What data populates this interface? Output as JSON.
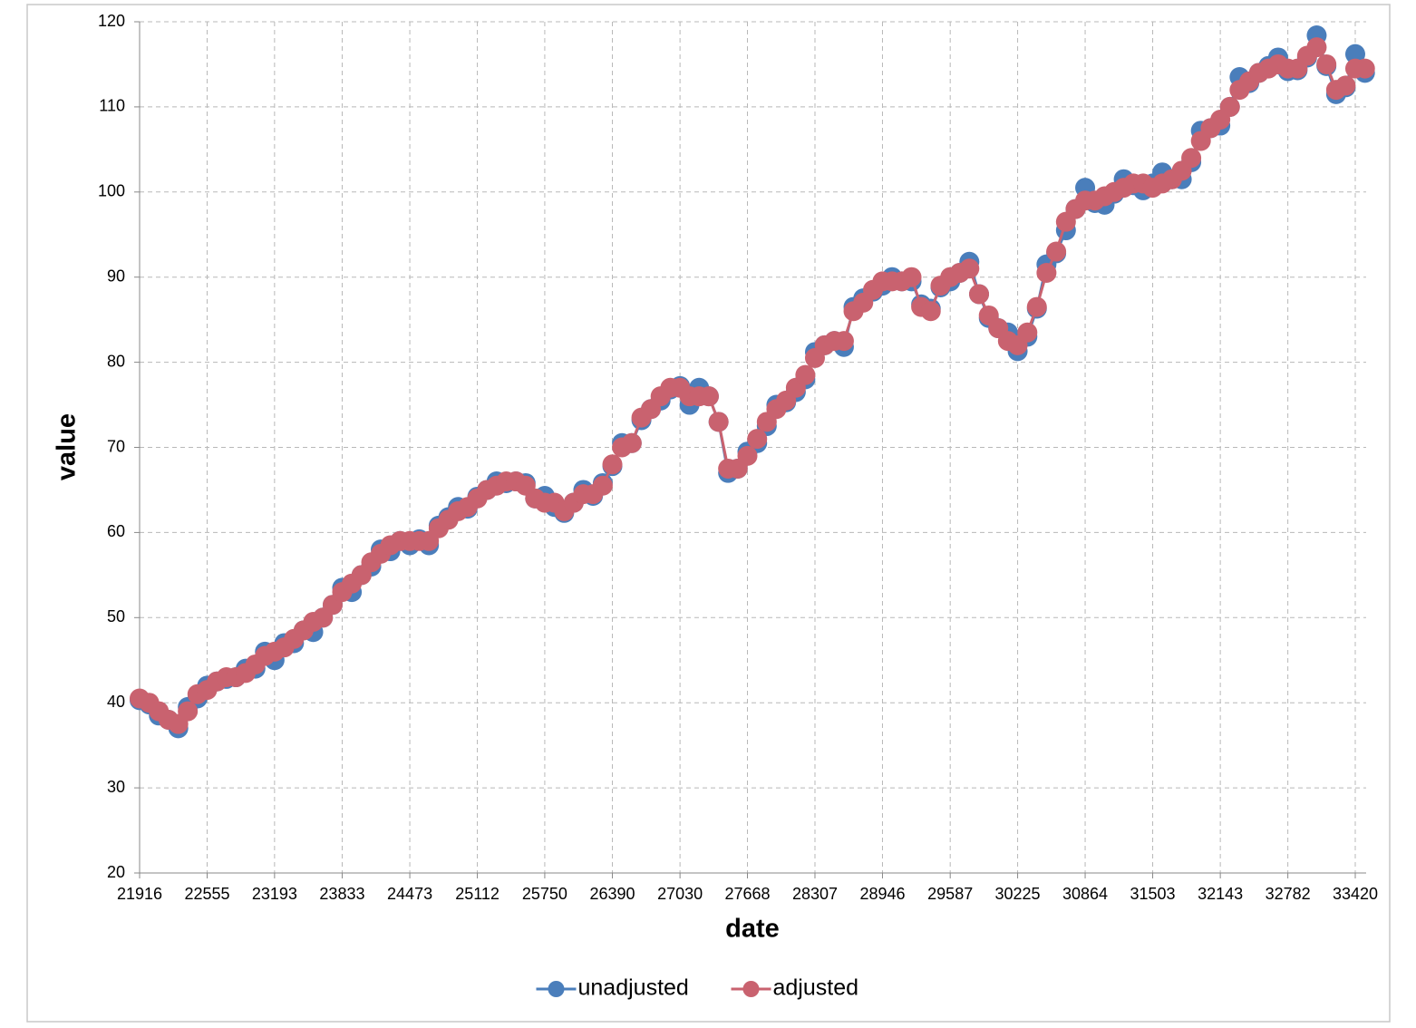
{
  "chart_data": {
    "type": "line",
    "x_label": "date",
    "y_label": "value",
    "x": [
      21916,
      22007,
      22098,
      22190,
      22282,
      22372,
      22463,
      22555,
      22647,
      22737,
      22828,
      22920,
      23012,
      23102,
      23193,
      23285,
      23377,
      23468,
      23559,
      23651,
      23743,
      23833,
      23924,
      24016,
      24108,
      24198,
      24289,
      24381,
      24473,
      24563,
      24654,
      24746,
      24838,
      24929,
      25020,
      25112,
      25204,
      25294,
      25385,
      25477,
      25569,
      25659,
      25750,
      25842,
      25934,
      26024,
      26115,
      26207,
      26299,
      26390,
      26481,
      26573,
      26665,
      26755,
      26846,
      26938,
      27030,
      27120,
      27211,
      27303,
      27395,
      27485,
      27576,
      27668,
      27760,
      27851,
      27942,
      28034,
      28126,
      28216,
      28307,
      28399,
      28491,
      28581,
      28672,
      28764,
      28856,
      28946,
      29037,
      29129,
      29221,
      29312,
      29403,
      29495,
      29587,
      29677,
      29768,
      29860,
      29952,
      30042,
      30133,
      30225,
      30317,
      30407,
      30498,
      30590,
      30682,
      30773,
      30864,
      30956,
      31048,
      31138,
      31229,
      31321,
      31413,
      31503,
      31594,
      31686,
      31778,
      31868,
      31959,
      32051,
      32143,
      32234,
      32325,
      32417,
      32509,
      32599,
      32690,
      32782,
      32874,
      32964,
      33055,
      33147,
      33239,
      33329,
      33420,
      33512
    ],
    "series": [
      {
        "name": "unadjusted",
        "color": "#4a7ebb",
        "values": [
          40.3,
          39.8,
          38.5,
          38,
          37,
          39.5,
          40.5,
          42,
          42.5,
          42.8,
          43,
          44,
          44,
          46,
          45,
          47,
          47,
          48.5,
          48.3,
          50,
          51.5,
          53.5,
          53,
          55,
          56,
          58,
          57.8,
          59,
          58.5,
          59.2,
          58.5,
          60.8,
          61.8,
          63,
          62.8,
          64.2,
          65,
          66,
          65.8,
          66,
          65.8,
          64,
          64.3,
          63,
          62.3,
          63.5,
          65,
          64.3,
          65.8,
          67.8,
          70.5,
          70.5,
          73.2,
          74.5,
          75.5,
          76.8,
          77.2,
          75,
          77,
          76,
          73,
          67,
          67.5,
          69.5,
          70.5,
          72.5,
          75,
          75.3,
          76.5,
          78,
          81.2,
          82,
          82.5,
          81.8,
          86.5,
          87.5,
          88.3,
          89,
          90,
          89.5,
          89.5,
          86.8,
          86.3,
          88.8,
          89.5,
          90.5,
          91.8,
          88,
          85.2,
          84,
          83.5,
          81.3,
          83,
          86.3,
          91.5,
          92.8,
          95.5,
          98,
          100.5,
          98.7,
          98.5,
          99.8,
          101.5,
          100.8,
          100.2,
          101,
          102.3,
          101.5,
          101.5,
          103.5,
          107.2,
          107.5,
          107.8,
          110,
          113.5,
          112.8,
          114,
          114.8,
          115.8,
          114.2,
          114.3,
          115.8,
          118.4,
          114.8,
          111.5,
          112.3,
          116.2,
          114
        ]
      },
      {
        "name": "adjusted",
        "color": "#c9626f",
        "values": [
          40.5,
          40,
          39,
          38,
          37.5,
          39,
          41,
          41.5,
          42.5,
          43,
          43,
          43.5,
          44.5,
          45.5,
          46,
          46.5,
          47.5,
          48.5,
          49.5,
          50,
          51.5,
          53,
          54,
          55,
          56.5,
          57.5,
          58.5,
          59,
          59,
          59,
          59,
          60.5,
          61.5,
          62.5,
          63,
          64,
          65,
          65.5,
          66,
          66,
          65.5,
          64,
          63.5,
          63.5,
          62.5,
          63.5,
          64.5,
          64.5,
          65.5,
          68,
          70,
          70.5,
          73.5,
          74.5,
          76,
          77,
          77,
          76,
          76,
          76,
          73,
          67.5,
          67.5,
          69,
          71,
          73,
          74.5,
          75.5,
          77,
          78.5,
          80.5,
          82,
          82.5,
          82.5,
          86,
          87,
          88.5,
          89.5,
          89.5,
          89.5,
          90,
          86.5,
          86,
          89,
          90,
          90.5,
          91,
          88,
          85.5,
          84,
          82.5,
          82,
          83.5,
          86.5,
          90.5,
          93,
          96.5,
          98,
          99,
          99,
          99.5,
          100,
          100.5,
          101,
          101,
          100.5,
          101,
          101.5,
          102.5,
          104,
          106,
          107.5,
          108.5,
          110,
          112,
          113,
          114,
          114.5,
          115,
          114.5,
          114.5,
          116,
          117,
          115,
          112,
          112.5,
          114.5,
          114.5
        ]
      }
    ],
    "xlim": [
      21916,
      33523
    ],
    "ylim": [
      20,
      120
    ],
    "xticks": [
      21916,
      22555,
      23193,
      23833,
      24473,
      25112,
      25750,
      26390,
      27030,
      27668,
      28307,
      28946,
      29587,
      30225,
      30864,
      31503,
      32143,
      32782,
      33420
    ],
    "yticks": [
      20,
      30,
      40,
      50,
      60,
      70,
      80,
      90,
      100,
      110,
      120
    ],
    "grid": true,
    "legend": "bottom"
  }
}
